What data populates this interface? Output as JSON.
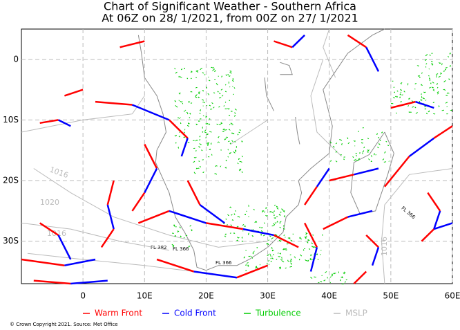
{
  "chart_data": {
    "type": "map",
    "title": "Chart of Significant Weather - Southern Africa",
    "subtitle": "At 06Z on 28/ 1/2021, from 00Z on 27/ 1/2021",
    "xlim": [
      -10,
      60
    ],
    "ylim": [
      -37,
      5
    ],
    "xticks": [
      0,
      {
        "value": 10,
        "label": "10E"
      },
      {
        "value": 20,
        "label": "20E"
      },
      {
        "value": 30,
        "label": "30E"
      },
      {
        "value": 40,
        "label": "40E"
      },
      {
        "value": 50,
        "label": "50E"
      },
      {
        "value": 60,
        "label": "60E"
      }
    ],
    "yticks": [
      0,
      {
        "value": -10,
        "label": "10S"
      },
      {
        "value": -20,
        "label": "20S"
      },
      {
        "value": -30,
        "label": "30S"
      }
    ],
    "grid": true,
    "legend": [
      {
        "name": "Warm Front",
        "color": "#ff0000"
      },
      {
        "name": "Cold Front",
        "color": "#0000ff"
      },
      {
        "name": "Turbulence",
        "color": "#00cc00"
      },
      {
        "name": "MSLP",
        "color": "#bbbbbb"
      }
    ],
    "annotations": [
      "1016",
      "1020",
      "1016",
      "1016",
      "FL 382",
      "FL 366",
      "FL 366",
      "FL 366"
    ],
    "copyright": "© Crown Copyright 2021. Source: Met Office"
  }
}
